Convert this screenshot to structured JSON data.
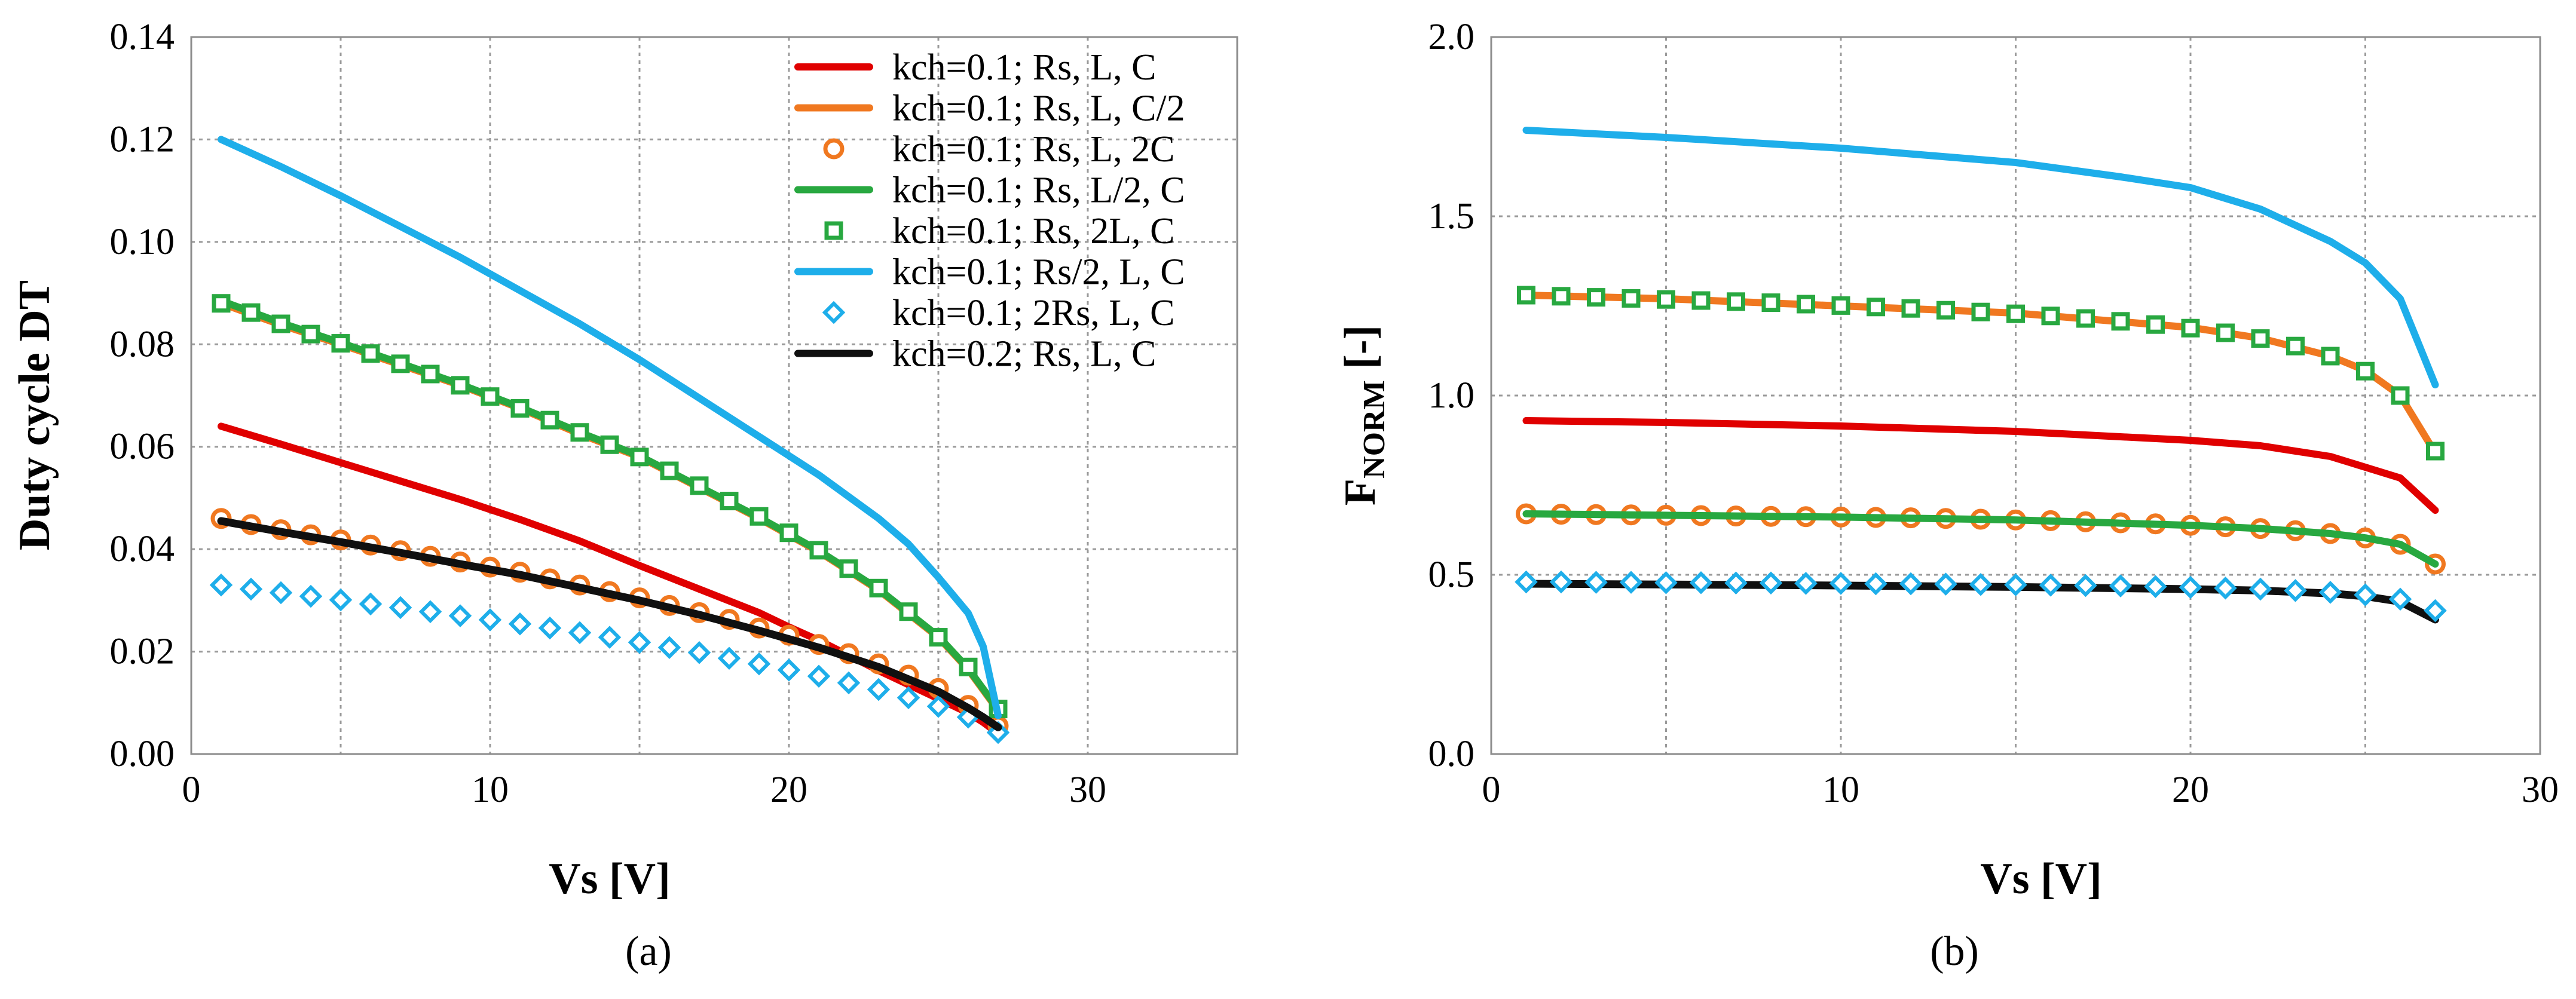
{
  "figure": {
    "panel_a_caption": "(a)",
    "panel_b_caption": "(b)"
  },
  "chart_data": [
    {
      "type": "line",
      "panel": "a",
      "title": "",
      "xlabel": "Vs [V]",
      "ylabel": "Duty cycle DT",
      "xlim": [
        0,
        35
      ],
      "ylim": [
        0,
        0.14
      ],
      "xticks": [
        0,
        5,
        10,
        15,
        20,
        25,
        30,
        35
      ],
      "xtick_labels": [
        "0",
        "10",
        "20",
        "30"
      ],
      "labeled_xticks": [
        0,
        10,
        20,
        30
      ],
      "yticks": [
        0,
        0.02,
        0.04,
        0.06,
        0.08,
        0.1,
        0.12,
        0.14
      ],
      "ytick_labels": [
        "0.00",
        "0.02",
        "0.04",
        "0.06",
        "0.08",
        "0.10",
        "0.12",
        "0.14"
      ],
      "grid": true,
      "legend_position": "top-right",
      "series": [
        {
          "name": "kch=0.1; Rs, L, C",
          "style": "line",
          "color": "#E00000",
          "x": [
            1,
            3,
            5,
            7,
            9,
            11,
            13,
            15,
            17,
            19,
            20,
            21,
            23,
            25,
            26,
            26.5,
            27
          ],
          "y": [
            0.064,
            0.0605,
            0.0569,
            0.0533,
            0.0497,
            0.0458,
            0.0416,
            0.0368,
            0.0322,
            0.0276,
            0.0248,
            0.0222,
            0.0163,
            0.0108,
            0.008,
            0.0062,
            0.004
          ]
        },
        {
          "name": "kch=0.1; Rs, L, C/2",
          "style": "line",
          "color": "#F07820",
          "x": [
            1,
            3,
            5,
            7,
            9,
            11,
            13,
            15,
            17,
            19,
            21,
            23,
            25,
            26,
            26.5,
            27
          ],
          "y": [
            0.088,
            0.0838,
            0.08,
            0.076,
            0.072,
            0.0675,
            0.0625,
            0.058,
            0.052,
            0.046,
            0.0395,
            0.032,
            0.0228,
            0.0165,
            0.0125,
            0.0085
          ]
        },
        {
          "name": "kch=0.1; Rs, L, 2C",
          "style": "circle",
          "color": "#F07820",
          "x": [
            1,
            2,
            3,
            4,
            5,
            6,
            7,
            8,
            9,
            10,
            11,
            12,
            13,
            14,
            15,
            16,
            17,
            18,
            19,
            20,
            21,
            22,
            23,
            24,
            25,
            26,
            27
          ],
          "y": [
            0.046,
            0.0448,
            0.0438,
            0.0428,
            0.0418,
            0.0408,
            0.0397,
            0.0386,
            0.0375,
            0.0365,
            0.0355,
            0.0342,
            0.033,
            0.0317,
            0.0305,
            0.029,
            0.0276,
            0.0263,
            0.0246,
            0.0232,
            0.0214,
            0.0196,
            0.0176,
            0.0154,
            0.0128,
            0.0095,
            0.0055
          ]
        },
        {
          "name": "kch=0.1; Rs, L/2, C",
          "style": "line",
          "color": "#28A840",
          "x": [
            1,
            3,
            5,
            7,
            9,
            11,
            13,
            15,
            17,
            19,
            21,
            23,
            25,
            26,
            26.5,
            27
          ],
          "y": [
            0.0885,
            0.0842,
            0.0803,
            0.0763,
            0.0722,
            0.0677,
            0.0628,
            0.0582,
            0.0522,
            0.0462,
            0.0397,
            0.0322,
            0.023,
            0.0167,
            0.0127,
            0.0087
          ]
        },
        {
          "name": "kch=0.1; Rs, 2L, C",
          "style": "square",
          "color": "#28A840",
          "x": [
            1,
            2,
            3,
            4,
            5,
            6,
            7,
            8,
            9,
            10,
            11,
            12,
            13,
            14,
            15,
            16,
            17,
            18,
            19,
            20,
            21,
            22,
            23,
            24,
            25,
            26,
            27
          ],
          "y": [
            0.088,
            0.0862,
            0.084,
            0.082,
            0.0802,
            0.0782,
            0.0762,
            0.0742,
            0.072,
            0.0698,
            0.0675,
            0.0652,
            0.0628,
            0.0604,
            0.058,
            0.0553,
            0.0524,
            0.0494,
            0.0464,
            0.0432,
            0.0398,
            0.0362,
            0.0324,
            0.0278,
            0.0228,
            0.017,
            0.0088
          ]
        },
        {
          "name": "kch=0.1; Rs/2, L, C",
          "style": "line",
          "color": "#1EAEEA",
          "x": [
            1,
            3,
            5,
            7,
            9,
            11,
            13,
            15,
            17,
            19,
            21,
            23,
            24,
            25,
            26,
            26.5,
            27
          ],
          "y": [
            0.12,
            0.1147,
            0.109,
            0.103,
            0.097,
            0.0905,
            0.084,
            0.077,
            0.0695,
            0.062,
            0.0545,
            0.046,
            0.041,
            0.0345,
            0.0275,
            0.021,
            0.0075
          ]
        },
        {
          "name": "kch=0.1; 2Rs, L, C",
          "style": "diamond",
          "color": "#1EAEEA",
          "x": [
            1,
            2,
            3,
            4,
            5,
            6,
            7,
            8,
            9,
            10,
            11,
            12,
            13,
            14,
            15,
            16,
            17,
            18,
            19,
            20,
            21,
            22,
            23,
            24,
            25,
            26,
            27
          ],
          "y": [
            0.033,
            0.0322,
            0.0315,
            0.0308,
            0.0301,
            0.0293,
            0.0286,
            0.0278,
            0.027,
            0.0262,
            0.0254,
            0.0246,
            0.0237,
            0.0228,
            0.0218,
            0.0208,
            0.0198,
            0.0187,
            0.0176,
            0.0164,
            0.0152,
            0.0139,
            0.0126,
            0.011,
            0.0093,
            0.0072,
            0.0042
          ]
        },
        {
          "name": "kch=0.2; Rs, L, C",
          "style": "line",
          "color": "#101010",
          "x": [
            1,
            3,
            5,
            7,
            9,
            11,
            13,
            15,
            17,
            19,
            21,
            23,
            25,
            26,
            26.5,
            27
          ],
          "y": [
            0.0455,
            0.0434,
            0.0414,
            0.0393,
            0.0371,
            0.035,
            0.0325,
            0.03,
            0.0272,
            0.0241,
            0.0208,
            0.017,
            0.0122,
            0.009,
            0.0072,
            0.0052
          ]
        }
      ]
    },
    {
      "type": "line",
      "panel": "b",
      "title": "",
      "xlabel": "Vs [V]",
      "ylabel_main": "F",
      "ylabel_sub": "NORM",
      "ylabel_tail": " [-]",
      "xlim": [
        0,
        30
      ],
      "ylim": [
        0,
        2.0
      ],
      "xticks": [
        0,
        5,
        10,
        15,
        20,
        25,
        30
      ],
      "xtick_labels": [
        "0",
        "10",
        "20",
        "30"
      ],
      "labeled_xticks": [
        0,
        10,
        20,
        30
      ],
      "yticks": [
        0,
        0.5,
        1.0,
        1.5,
        2.0
      ],
      "ytick_labels": [
        "0.0",
        "0.5",
        "1.0",
        "1.5",
        "2.0"
      ],
      "grid": true,
      "series": [
        {
          "name": "kch=0.1; Rs/2, L, C",
          "style": "line",
          "color": "#1EAEEA",
          "x": [
            1,
            5,
            10,
            15,
            18,
            20,
            22,
            24,
            25,
            26,
            27
          ],
          "y": [
            1.74,
            1.72,
            1.69,
            1.65,
            1.61,
            1.58,
            1.52,
            1.43,
            1.37,
            1.27,
            1.03
          ]
        },
        {
          "name": "kch=0.1; Rs, L, C/2",
          "style": "line",
          "color": "#F07820",
          "x": [
            1,
            5,
            10,
            15,
            20,
            22,
            24,
            25,
            26,
            27
          ],
          "y": [
            1.28,
            1.27,
            1.25,
            1.23,
            1.19,
            1.16,
            1.11,
            1.07,
            1.0,
            0.84
          ]
        },
        {
          "name": "kch=0.1; Rs, 2L, C",
          "style": "square",
          "color": "#28A840",
          "x": [
            1,
            2,
            3,
            4,
            5,
            6,
            7,
            8,
            9,
            10,
            11,
            12,
            13,
            14,
            15,
            16,
            17,
            18,
            19,
            20,
            21,
            22,
            23,
            24,
            25,
            26,
            27
          ],
          "y": [
            1.28,
            1.277,
            1.274,
            1.271,
            1.268,
            1.265,
            1.262,
            1.259,
            1.255,
            1.251,
            1.247,
            1.243,
            1.238,
            1.233,
            1.228,
            1.222,
            1.215,
            1.207,
            1.198,
            1.188,
            1.175,
            1.159,
            1.138,
            1.11,
            1.068,
            1.0,
            0.845
          ]
        },
        {
          "name": "kch=0.1; Rs, L, C",
          "style": "line",
          "color": "#E00000",
          "x": [
            1,
            5,
            10,
            15,
            20,
            22,
            24,
            25,
            26,
            27
          ],
          "y": [
            0.93,
            0.925,
            0.915,
            0.9,
            0.875,
            0.86,
            0.83,
            0.8,
            0.77,
            0.68
          ]
        },
        {
          "name": "kch=0.1; Rs, L, 2C",
          "style": "circle",
          "color": "#F07820",
          "x": [
            1,
            2,
            3,
            4,
            5,
            6,
            7,
            8,
            9,
            10,
            11,
            12,
            13,
            14,
            15,
            16,
            17,
            18,
            19,
            20,
            21,
            22,
            23,
            24,
            25,
            26,
            27
          ],
          "y": [
            0.67,
            0.669,
            0.668,
            0.667,
            0.666,
            0.665,
            0.664,
            0.663,
            0.662,
            0.661,
            0.66,
            0.659,
            0.657,
            0.655,
            0.653,
            0.651,
            0.648,
            0.645,
            0.642,
            0.638,
            0.634,
            0.629,
            0.623,
            0.615,
            0.603,
            0.585,
            0.53
          ]
        },
        {
          "name": "kch=0.1; Rs, L/2, C",
          "style": "line",
          "color": "#28A840",
          "x": [
            1,
            5,
            10,
            15,
            20,
            22,
            24,
            25,
            26,
            27
          ],
          "y": [
            0.67,
            0.666,
            0.661,
            0.653,
            0.638,
            0.629,
            0.615,
            0.603,
            0.585,
            0.53
          ]
        },
        {
          "name": "kch=0.2; Rs, L, C",
          "style": "line",
          "color": "#101010",
          "x": [
            1,
            5,
            10,
            15,
            20,
            22,
            24,
            25,
            26,
            27
          ],
          "y": [
            0.475,
            0.473,
            0.47,
            0.466,
            0.46,
            0.456,
            0.448,
            0.44,
            0.425,
            0.375
          ]
        },
        {
          "name": "kch=0.1; 2Rs, L, C",
          "style": "diamond",
          "color": "#1EAEEA",
          "x": [
            1,
            2,
            3,
            4,
            5,
            6,
            7,
            8,
            9,
            10,
            11,
            12,
            13,
            14,
            15,
            16,
            17,
            18,
            19,
            20,
            21,
            22,
            23,
            24,
            25,
            26,
            27
          ],
          "y": [
            0.48,
            0.48,
            0.479,
            0.479,
            0.478,
            0.478,
            0.477,
            0.477,
            0.476,
            0.476,
            0.475,
            0.475,
            0.474,
            0.473,
            0.472,
            0.471,
            0.47,
            0.469,
            0.467,
            0.465,
            0.463,
            0.46,
            0.456,
            0.451,
            0.444,
            0.432,
            0.4
          ]
        }
      ]
    }
  ]
}
